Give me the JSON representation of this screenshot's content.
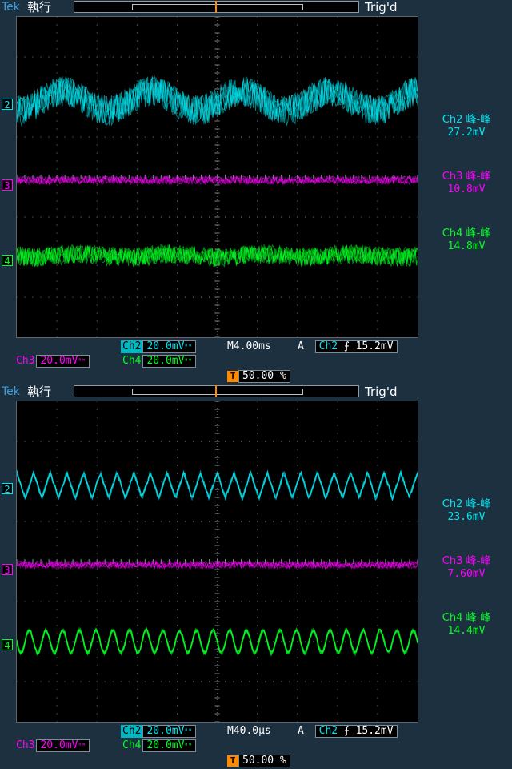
{
  "colors": {
    "ch2": "#00e5f0",
    "ch3": "#ff00ff",
    "ch4": "#00ff22",
    "grid": "#7c868f",
    "trigger": "#ff8a00",
    "frame": "#1d3040"
  },
  "panels": [
    {
      "brand": "Tek",
      "mode": "執行",
      "trig_status": "Trig'd",
      "channels": [
        {
          "id": "2",
          "color": "ch2"
        },
        {
          "id": "3",
          "color": "ch3"
        },
        {
          "id": "4",
          "color": "ch4"
        }
      ],
      "measurements": [
        {
          "label": "Ch2 峰-峰",
          "value": "27.2mV",
          "color": "ch2"
        },
        {
          "label": "Ch3 峰-峰",
          "value": "10.8mV",
          "color": "ch3"
        },
        {
          "label": "Ch4 峰-峰",
          "value": "14.8mV",
          "color": "ch4"
        }
      ],
      "ch2_tag": "Ch2",
      "ch2_scale": "20.0mV",
      "ch3_tag": "Ch3",
      "ch3_scale": "20.0mV",
      "ch4_tag": "Ch4",
      "ch4_scale": "20.0mV",
      "bw_icon": "bandwidth-limit-icon",
      "timebase": "M4.00ms",
      "trig_mode": "A",
      "trig_source": "Ch2",
      "slope_icon": "rising-edge-icon",
      "trig_level": "15.2mV",
      "trig_pos_icon": "T",
      "trig_position": "50.00 %"
    },
    {
      "brand": "Tek",
      "mode": "執行",
      "trig_status": "Trig'd",
      "channels": [
        {
          "id": "2",
          "color": "ch2"
        },
        {
          "id": "3",
          "color": "ch3"
        },
        {
          "id": "4",
          "color": "ch4"
        }
      ],
      "measurements": [
        {
          "label": "Ch2 峰-峰",
          "value": "23.6mV",
          "color": "ch2"
        },
        {
          "label": "Ch3 峰-峰",
          "value": "7.60mV",
          "color": "ch3"
        },
        {
          "label": "Ch4 峰-峰",
          "value": "14.4mV",
          "color": "ch4"
        }
      ],
      "ch2_tag": "Ch2",
      "ch2_scale": "20.0mV",
      "ch3_tag": "Ch3",
      "ch3_scale": "20.0mV",
      "ch4_tag": "Ch4",
      "ch4_scale": "20.0mV",
      "bw_icon": "bandwidth-limit-icon",
      "timebase": "M40.0µs",
      "trig_mode": "A",
      "trig_source": "Ch2",
      "slope_icon": "rising-edge-icon",
      "trig_level": "15.2mV",
      "trig_pos_icon": "T",
      "trig_position": "50.00 %"
    }
  ]
}
